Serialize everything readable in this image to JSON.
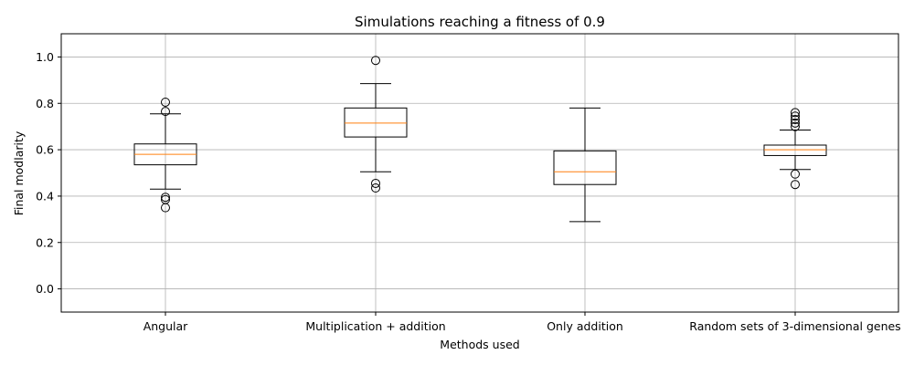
{
  "chart_data": {
    "type": "box",
    "title": "Simulations reaching a fitness of 0.9",
    "xlabel": "Methods used",
    "ylabel": "Final modlarity",
    "ylim": [
      -0.1,
      1.1
    ],
    "yticks": [
      0.0,
      0.2,
      0.4,
      0.6,
      0.8,
      1.0
    ],
    "ytick_labels": [
      "0.0",
      "0.2",
      "0.4",
      "0.6",
      "0.8",
      "1.0"
    ],
    "grid": true,
    "categories": [
      "Angular",
      "Multiplication + addition",
      "Only addition",
      "Random sets of 3-dimensional genes"
    ],
    "boxes": [
      {
        "whislo": 0.43,
        "q1": 0.535,
        "median": 0.58,
        "q3": 0.625,
        "whishi": 0.755,
        "fliers": [
          0.805,
          0.765,
          0.395,
          0.385,
          0.35
        ]
      },
      {
        "whislo": 0.505,
        "q1": 0.655,
        "median": 0.715,
        "q3": 0.78,
        "whishi": 0.885,
        "fliers": [
          0.985,
          0.455,
          0.435
        ]
      },
      {
        "whislo": 0.29,
        "q1": 0.45,
        "median": 0.505,
        "q3": 0.595,
        "whishi": 0.78,
        "fliers": []
      },
      {
        "whislo": 0.515,
        "q1": 0.575,
        "median": 0.6,
        "q3": 0.62,
        "whishi": 0.685,
        "fliers": [
          0.76,
          0.745,
          0.73,
          0.715,
          0.7,
          0.495,
          0.45
        ]
      }
    ],
    "colors": {
      "median": "#ff7f0e",
      "box": "#000000",
      "grid": "#b0b0b0"
    }
  }
}
